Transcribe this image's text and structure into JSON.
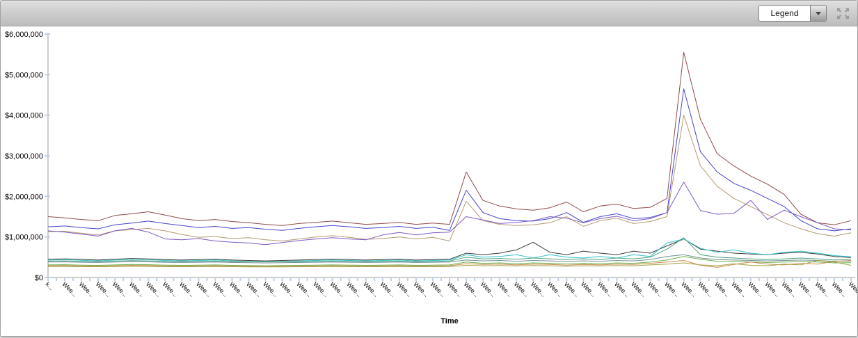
{
  "toolbar": {
    "legend_dropdown": {
      "value": "Legend"
    }
  },
  "chart_data": {
    "type": "line",
    "title": "",
    "xlabel": "Time",
    "ylabel": "",
    "ylim": [
      0,
      6000000
    ],
    "grid": false,
    "legend": "collapsed (dropdown, closed)",
    "y_ticks": [
      "$6,000,000",
      "$5,000,000",
      "$4,000,000",
      "$3,000,000",
      "$2,000,000",
      "$1,000,000",
      "$0"
    ],
    "n_points": 49,
    "x_labels": [
      "k...",
      "Wee...",
      "Wee...",
      "Wee...",
      "Wee...",
      "Wee...",
      "Wee...",
      "Wee...",
      "Wee...",
      "Wee...",
      "Wee...",
      "Wee...",
      "Wee...",
      "Wee...",
      "Wee...",
      "Wee...",
      "Wee...",
      "Wee...",
      "Wee...",
      "Wee...",
      "Wee...",
      "Wee...",
      "Wee...",
      "Wee...",
      "Wee...",
      "Wee...",
      "Wee...",
      "Wee...",
      "Wee...",
      "Wee...",
      "Wee...",
      "Wee...",
      "Wee...",
      "Wee...",
      "Wee...",
      "Wee...",
      "Wee...",
      "Wee...",
      "Wee...",
      "Wee...",
      "Wee...",
      "Wee...",
      "Wee...",
      "Wee...",
      "Wee...",
      "Wee...",
      "Wee...",
      "Wee...",
      "Wee"
    ],
    "axis_color": "#999999",
    "tick_color": "#b9d2ee",
    "series": [
      {
        "name": "dark-red",
        "color": "#8f4a4a",
        "values": [
          1500000,
          1470000,
          1430000,
          1400000,
          1530000,
          1570000,
          1620000,
          1540000,
          1450000,
          1400000,
          1430000,
          1380000,
          1350000,
          1310000,
          1280000,
          1330000,
          1360000,
          1390000,
          1350000,
          1310000,
          1330000,
          1360000,
          1310000,
          1340000,
          1310000,
          2600000,
          1900000,
          1760000,
          1690000,
          1660000,
          1720000,
          1860000,
          1620000,
          1760000,
          1810000,
          1700000,
          1730000,
          1950000,
          5550000,
          3900000,
          3050000,
          2750000,
          2500000,
          2300000,
          2050000,
          1560000,
          1350000,
          1300000,
          1400000
        ]
      },
      {
        "name": "blue",
        "color": "#4444cc",
        "values": [
          1250000,
          1270000,
          1230000,
          1200000,
          1300000,
          1340000,
          1390000,
          1330000,
          1280000,
          1230000,
          1260000,
          1210000,
          1230000,
          1190000,
          1160000,
          1210000,
          1250000,
          1280000,
          1250000,
          1210000,
          1230000,
          1260000,
          1210000,
          1240000,
          1160000,
          2150000,
          1600000,
          1450000,
          1400000,
          1390000,
          1450000,
          1600000,
          1360000,
          1500000,
          1570000,
          1450000,
          1480000,
          1600000,
          4650000,
          3100000,
          2600000,
          2320000,
          2150000,
          1950000,
          1750000,
          1400000,
          1200000,
          1150000,
          1200000
        ]
      },
      {
        "name": "tan",
        "color": "#b49a72",
        "values": [
          1130000,
          1140000,
          1090000,
          1050000,
          1150000,
          1180000,
          1210000,
          1150000,
          1060000,
          990000,
          1010000,
          960000,
          980000,
          930000,
          900000,
          950000,
          1000000,
          1030000,
          990000,
          940000,
          960000,
          1000000,
          950000,
          990000,
          900000,
          1880000,
          1400000,
          1310000,
          1280000,
          1300000,
          1350000,
          1500000,
          1260000,
          1400000,
          1460000,
          1330000,
          1380000,
          1500000,
          4000000,
          2750000,
          2250000,
          1950000,
          1750000,
          1550000,
          1350000,
          1200000,
          1080000,
          1020000,
          1100000
        ]
      },
      {
        "name": "purple",
        "color": "#7d58c4",
        "values": [
          1150000,
          1120000,
          1070000,
          1020000,
          1150000,
          1210000,
          1120000,
          950000,
          930000,
          960000,
          900000,
          870000,
          850000,
          810000,
          860000,
          910000,
          950000,
          980000,
          950000,
          930000,
          1050000,
          1110000,
          1050000,
          1100000,
          1120000,
          1500000,
          1420000,
          1330000,
          1360000,
          1400000,
          1500000,
          1460000,
          1350000,
          1450000,
          1510000,
          1400000,
          1450000,
          1600000,
          2350000,
          1650000,
          1560000,
          1580000,
          1900000,
          1430000,
          1660000,
          1500000,
          1350000,
          1200000,
          1170000
        ]
      },
      {
        "name": "black",
        "color": "#3d3d3d",
        "values": [
          450000,
          460000,
          445000,
          430000,
          450000,
          470000,
          460000,
          440000,
          430000,
          440000,
          450000,
          430000,
          420000,
          410000,
          420000,
          430000,
          440000,
          450000,
          440000,
          430000,
          440000,
          450000,
          430000,
          440000,
          450000,
          600000,
          560000,
          600000,
          680000,
          870000,
          620000,
          560000,
          650000,
          600000,
          560000,
          650000,
          600000,
          780000,
          950000,
          700000,
          650000,
          600000,
          580000,
          560000,
          600000,
          620000,
          580000,
          520000,
          490000
        ]
      },
      {
        "name": "cyan",
        "color": "#2fc3c9",
        "values": [
          430000,
          440000,
          425000,
          410000,
          430000,
          450000,
          440000,
          420000,
          410000,
          420000,
          430000,
          410000,
          400000,
          390000,
          400000,
          410000,
          420000,
          430000,
          420000,
          410000,
          420000,
          430000,
          410000,
          420000,
          430000,
          560000,
          500000,
          520000,
          560000,
          480000,
          560000,
          500000,
          480000,
          520000,
          480000,
          560000,
          520000,
          850000,
          950000,
          720000,
          620000,
          680000,
          600000,
          560000,
          620000,
          650000,
          600000,
          540000,
          510000
        ]
      },
      {
        "name": "sea-green",
        "color": "#4f9e7e",
        "values": [
          405000,
          410000,
          400000,
          395000,
          405000,
          415000,
          410000,
          400000,
          395000,
          400000,
          405000,
          395000,
          390000,
          385000,
          390000,
          395000,
          400000,
          405000,
          400000,
          395000,
          400000,
          405000,
          395000,
          400000,
          405000,
          500000,
          460000,
          470000,
          450000,
          480000,
          460000,
          440000,
          460000,
          440000,
          480000,
          460000,
          500000,
          700000,
          980000,
          560000,
          500000,
          480000,
          460000,
          440000,
          460000,
          480000,
          460000,
          430000,
          445000
        ]
      },
      {
        "name": "slate-teal",
        "color": "#6f8f8f",
        "values": [
          380000,
          385000,
          375000,
          370000,
          380000,
          390000,
          385000,
          375000,
          370000,
          375000,
          380000,
          370000,
          365000,
          360000,
          365000,
          370000,
          375000,
          380000,
          375000,
          370000,
          375000,
          380000,
          370000,
          375000,
          380000,
          430000,
          410000,
          420000,
          400000,
          420000,
          410000,
          395000,
          410000,
          400000,
          420000,
          410000,
          440000,
          520000,
          560000,
          480000,
          440000,
          430000,
          420000,
          410000,
          420000,
          430000,
          420000,
          400000,
          405000
        ]
      },
      {
        "name": "green",
        "color": "#6ab04c",
        "values": [
          310000,
          315000,
          305000,
          300000,
          310000,
          320000,
          315000,
          305000,
          300000,
          305000,
          310000,
          300000,
          295000,
          290000,
          295000,
          300000,
          305000,
          310000,
          305000,
          300000,
          305000,
          310000,
          300000,
          305000,
          310000,
          380000,
          350000,
          360000,
          340000,
          360000,
          350000,
          335000,
          350000,
          340000,
          360000,
          350000,
          380000,
          430000,
          520000,
          450000,
          400000,
          390000,
          380000,
          370000,
          380000,
          390000,
          380000,
          360000,
          365000
        ]
      },
      {
        "name": "orange",
        "color": "#cd8a4e",
        "values": [
          290000,
          295000,
          285000,
          280000,
          290000,
          300000,
          295000,
          285000,
          280000,
          285000,
          290000,
          280000,
          275000,
          270000,
          275000,
          280000,
          285000,
          290000,
          285000,
          280000,
          285000,
          290000,
          280000,
          285000,
          290000,
          340000,
          320000,
          330000,
          310000,
          330000,
          320000,
          305000,
          320000,
          310000,
          330000,
          320000,
          350000,
          380000,
          420000,
          300000,
          250000,
          320000,
          380000,
          330000,
          310000,
          350000,
          330000,
          400000,
          420000
        ]
      },
      {
        "name": "olive",
        "color": "#a3a342",
        "values": [
          270000,
          272000,
          268000,
          265000,
          270000,
          275000,
          272000,
          268000,
          265000,
          268000,
          270000,
          265000,
          262000,
          260000,
          262000,
          265000,
          268000,
          270000,
          268000,
          265000,
          268000,
          270000,
          265000,
          268000,
          270000,
          300000,
          290000,
          295000,
          285000,
          295000,
          290000,
          280000,
          290000,
          285000,
          295000,
          290000,
          310000,
          330000,
          360000,
          310000,
          290000,
          340000,
          300000,
          290000,
          330000,
          310000,
          420000,
          380000,
          300000
        ]
      }
    ]
  }
}
